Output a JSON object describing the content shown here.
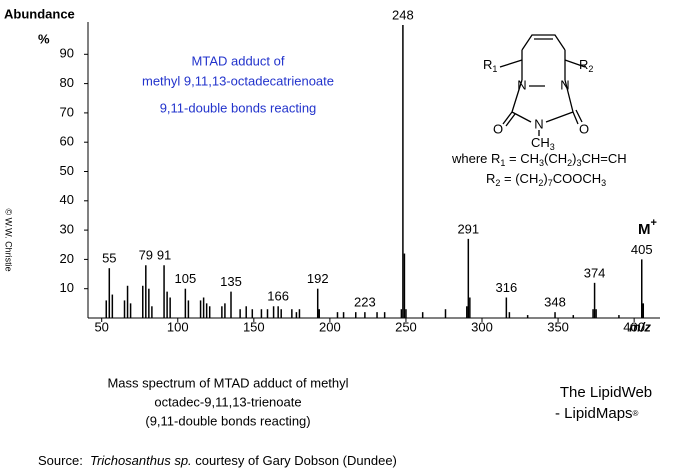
{
  "chart_data": {
    "type": "spectrum",
    "y_label": "Abundance",
    "y_unit": "%",
    "x_label": "m/z",
    "color": "#000000",
    "xlim": [
      41,
      417
    ],
    "ylim": [
      0,
      100
    ],
    "xticks": [
      50,
      100,
      150,
      200,
      250,
      300,
      350,
      400
    ],
    "yticks": [
      10,
      20,
      30,
      40,
      50,
      60,
      70,
      80,
      90
    ],
    "x": [
      53,
      55,
      57,
      65,
      67,
      69,
      77,
      79,
      81,
      83,
      91,
      93,
      95,
      105,
      107,
      115,
      117,
      119,
      121,
      129,
      131,
      135,
      141,
      145,
      149,
      155,
      159,
      163,
      166,
      168,
      175,
      178,
      180,
      192,
      193,
      205,
      209,
      217,
      223,
      231,
      236,
      247,
      248,
      249,
      250,
      261,
      276,
      290,
      291,
      292,
      316,
      318,
      330,
      348,
      360,
      373,
      374,
      375,
      390,
      405,
      406
    ],
    "values": [
      6,
      17,
      8,
      6,
      11,
      5,
      11,
      18,
      10,
      4,
      18,
      9,
      7,
      10,
      6,
      6,
      7,
      5,
      4,
      4,
      5,
      9,
      3,
      4,
      3,
      3,
      3,
      4,
      4,
      3,
      3,
      2,
      3,
      10,
      3,
      2,
      2,
      2,
      2,
      2,
      2,
      3,
      100,
      22,
      3,
      2,
      3,
      4,
      27,
      7,
      7,
      2,
      1,
      2,
      1,
      3,
      12,
      3,
      1,
      20,
      5
    ],
    "peak_labels": [
      null,
      "55",
      null,
      null,
      null,
      null,
      null,
      "79",
      null,
      null,
      "91",
      null,
      null,
      "105",
      null,
      null,
      null,
      null,
      null,
      null,
      null,
      "135",
      null,
      null,
      null,
      null,
      null,
      null,
      "166",
      null,
      null,
      null,
      null,
      "192",
      null,
      null,
      null,
      null,
      "223",
      null,
      null,
      null,
      "248",
      null,
      null,
      null,
      null,
      null,
      "291",
      null,
      "316",
      null,
      null,
      "348",
      null,
      null,
      "374",
      null,
      null,
      "405",
      null
    ],
    "molecular_ion": {
      "text": "M",
      "sup": "+"
    },
    "annotation": [
      "MTAD adduct of",
      "methyl 9,11,13-octadecatrienoate",
      "9,11-double bonds reacting"
    ]
  },
  "structure": {
    "r1": [
      "R",
      "1"
    ],
    "r2": [
      "R",
      "2"
    ],
    "n1": "N",
    "n2": "N",
    "o1": "O",
    "o2": "O",
    "n3": "N",
    "ch3": [
      "CH",
      "3"
    ],
    "where1": [
      "where R",
      "1",
      " = CH",
      "3",
      "(CH",
      "2",
      ")",
      "3",
      "CH=CH"
    ],
    "where2": [
      "R",
      "2",
      " = (CH",
      "2",
      ")",
      "7",
      "COOCH",
      "3"
    ]
  },
  "copyright": "© W.W. Christie",
  "caption": [
    "Mass spectrum of MTAD adduct of methyl",
    "octadec-9,11,13-trienoate",
    "(9,11-double bonds reacting)"
  ],
  "brand": {
    "line1": "The LipidWeb",
    "line2": "- LipidMaps",
    "mark": "®"
  },
  "source": {
    "prefix": "Source:  ",
    "species": "Trichosanthus sp.",
    "suffix": " courtesy of Gary Dobson (Dundee)"
  }
}
